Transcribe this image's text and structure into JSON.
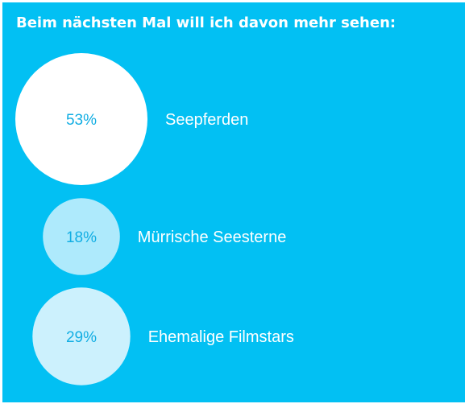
{
  "title": "Beim nächsten Mal will ich davon mehr sehen:",
  "colors": {
    "background": "#02c0f3",
    "percent_text": "#12aee3"
  },
  "chart_data": {
    "type": "bubble",
    "title": "Beim nächsten Mal will ich davon mehr sehen:",
    "unit": "%",
    "items": [
      {
        "label": "Seepferden",
        "value": 53,
        "display": "53%",
        "color": "#ffffff"
      },
      {
        "label": "Mürrische Seesterne",
        "value": 18,
        "display": "18%",
        "color": "#aeeafc"
      },
      {
        "label": "Ehemalige Filmstars",
        "value": 29,
        "display": "29%",
        "color": "#ccf1fd"
      }
    ]
  }
}
